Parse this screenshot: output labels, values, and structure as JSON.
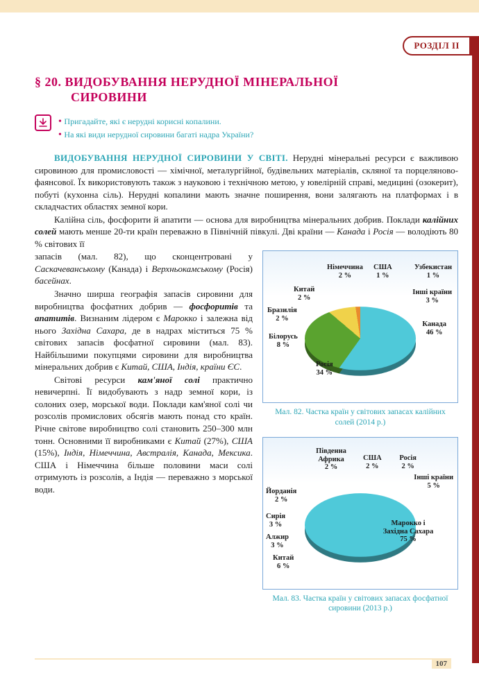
{
  "header": {
    "section_label": "РОЗДІЛ ІІ",
    "page_number": "107"
  },
  "title": {
    "prefix": "§ 20.",
    "line1": "ВИДОБУВАННЯ НЕРУДНОЇ МІНЕРАЛЬНОЇ",
    "line2": "СИРОВИНИ"
  },
  "prompts": {
    "p1": "Пригадайте, які є нерудні корисні копалини.",
    "p2": "На які види нерудної сировини багаті надра України?"
  },
  "subhead": "ВИДОБУВАННЯ НЕРУДНОЇ СИРОВИНИ У СВІТІ.",
  "paragraphs": {
    "p1a": "Нерудні мінеральні ресурси є важливою сировиною для промисловості — хімічної, металургійної, будівельних матеріалів, скляної та порцеляново-фаянсової. Їх використовують також з науковою і технічною метою, у ювелірній справі, медицині (озокерит), побуті (кухонна сіль). Нерудні копалини мають значне поширення, вони залягають на платформах і в складчастих областях земної кори.",
    "p2a": "Калійна сіль, фосфорити й апатити — основа для виробництва мінеральних добрив. Поклади ",
    "p2b": "калійних солей",
    "p2c": " мають менше 20-ти країн переважно в Північній півкулі. Дві країни — ",
    "p2d": "Канада",
    "p2e": " і ",
    "p2f": "Росія",
    "p2g": " — володіють 80 % світових її",
    "p3a": "запасів (мал. 82), що сконцентровані у ",
    "p3b": "Саскачеванському",
    "p3c": " (Канада) і ",
    "p3d": "Верхньокамському",
    "p3e": " (Росія) ",
    "p3f": "басейнах",
    "p3g": ".",
    "p4a": "Значно ширша географія запасів сировини для виробництва фосфатних добрив — ",
    "p4b": "фосфоритів",
    "p4c": " та ",
    "p4d": "апатитів",
    "p4e": ". Визнаним лідером є ",
    "p4f": "Марокко",
    "p4g": " і залежна від нього ",
    "p4h": "Західна Сахара",
    "p4i": ", де в надрах міститься 75 % світових запасів фосфатної сировини (мал. 83). Найбільшими покупцями сировини для виробництва мінеральних добрив є ",
    "p4j": "Китай, США, Індія, країни ЄС",
    "p4k": ".",
    "p5a": "Світові ресурси ",
    "p5b": "кам'яної солі",
    "p5c": " практично невичерпні. Її видобувають з надр земної кори, із солоних озер, морської води. Поклади кам'яної солі чи розсолів промислових обсягів мають понад сто країн. Річне світове виробництво солі становить 250–300 млн тонн. Основними її виробниками є ",
    "p5d": "Китай",
    "p5e": " (27%), ",
    "p5f": "США",
    "p5g": " (15%), ",
    "p5h": "Індія, Німеччина, Австралія, Канада, Мексика",
    "p5i": ". США і Німеччина більше половини маси солі отримують із розсолів, а Індія — переважно з морської води."
  },
  "chart82": {
    "caption": "Мал. 82. Частка країн у світових запасах калійних солей (2014 р.)",
    "slices": [
      {
        "label": "Канада",
        "value": 46,
        "color": "#4fc9d9"
      },
      {
        "label": "Росія",
        "value": 34,
        "color": "#5aa32f"
      },
      {
        "label": "Білорусь",
        "value": 8,
        "color": "#f0d24a"
      },
      {
        "label": "Бразилія",
        "value": 2,
        "color": "#e98a2e"
      },
      {
        "label": "Китай",
        "value": 2,
        "color": "#d44a9e"
      },
      {
        "label": "Німеччина",
        "value": 2,
        "color": "#8a3fb5"
      },
      {
        "label": "США",
        "value": 1,
        "color": "#3a5fc4"
      },
      {
        "label": "Узбекистан",
        "value": 1,
        "color": "#a8494c"
      },
      {
        "label": "Інші країни",
        "value": 3,
        "color": "#d94a6a"
      }
    ],
    "background": "#eaf3fb",
    "border": "#7aa8d8"
  },
  "chart83": {
    "caption": "Мал. 83. Частка країн у світових запасах фосфатної сировини (2013 р.)",
    "slices": [
      {
        "label": "Марокко і Західна Сахара",
        "value": 75,
        "color": "#4fc9d9"
      },
      {
        "label": "Китай",
        "value": 6,
        "color": "#5aa32f"
      },
      {
        "label": "Алжир",
        "value": 3,
        "color": "#f0d24a"
      },
      {
        "label": "Сирія",
        "value": 3,
        "color": "#e98a2e"
      },
      {
        "label": "Йорданія",
        "value": 2,
        "color": "#d44a9e"
      },
      {
        "label": "Південна Африка",
        "value": 2,
        "color": "#8a3fb5"
      },
      {
        "label": "США",
        "value": 2,
        "color": "#3a5fc4"
      },
      {
        "label": "Росія",
        "value": 2,
        "color": "#a8494c"
      },
      {
        "label": "Інші країни",
        "value": 5,
        "color": "#d94a6a"
      }
    ],
    "background": "#eaf3fb",
    "border": "#7aa8d8"
  },
  "chart82_labels": {
    "canada": "Канада\n46 %",
    "russia": "Росія\n34 %",
    "belarus": "Білорусь\n8 %",
    "brazil": "Бразилія\n2 %",
    "china": "Китай\n2 %",
    "germany": "Німеччина\n2 %",
    "usa": "США\n1 %",
    "uzbek": "Узбекистан\n1 %",
    "other": "Інші країни\n3 %"
  },
  "chart83_labels": {
    "morocco": "Марокко і\nЗахідна Сахара\n75 %",
    "china": "Китай\n6 %",
    "algeria": "Алжир\n3 %",
    "syria": "Сирія\n3 %",
    "jordan": "Йорданія\n2 %",
    "safrica": "Південна\nАфрика\n2 %",
    "usa": "США\n2 %",
    "russia": "Росія\n2 %",
    "other": "Інші країни\n5 %"
  }
}
